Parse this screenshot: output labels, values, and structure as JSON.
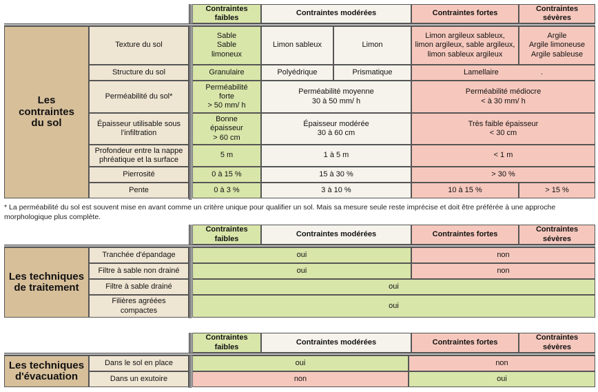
{
  "headers": {
    "faibles": "Contraintes\nfaibles",
    "moderees": "Contraintes modérées",
    "fortes": "Contraintes fortes",
    "severes": "Contraintes sévères"
  },
  "sol": {
    "title": "Les\ncontraintes\ndu sol",
    "rows": [
      {
        "label": "Texture du sol",
        "faibles": "Sable\nSable\nlimoneux",
        "moderees_a": "Limon sableux",
        "moderees_b": "Limon",
        "fortes": "Limon argileux sableux,\nlimon argileux, sable argileux,\nlimon sableux argileux",
        "severes": "Argile\nArgile limoneuse\nArgile sableuse"
      },
      {
        "label": "Structure du sol",
        "faibles": "Granulaire",
        "moderees_a": "Polyédrique",
        "moderees_b": "Prismatique",
        "fortes": "Lamellaire                    ."
      },
      {
        "label": "Perméabilité du sol*",
        "faibles": "Perméabilité\nforte\n> 50 mm/ h",
        "moderees": "Perméabilité moyenne\n30 à 50 mm/ h",
        "fortes": "Perméabilité médiocre\n< à 30 mm/ h"
      },
      {
        "label": "Épaisseur utilisable sous\nl'infiltration",
        "faibles": "Bonne\népaisseur\n> 60 cm",
        "moderees": "Épaisseur modérée\n30 à 60 cm",
        "fortes": "Très faible épaisseur\n< 30 cm"
      },
      {
        "label": "Profondeur entre la nappe\nphréatique et la surface",
        "faibles": "5 m",
        "moderees": "1 à 5 m",
        "fortes": "< 1 m"
      },
      {
        "label": "Pierrosité",
        "faibles": "0 à 15 %",
        "moderees": "15 à 30 %",
        "fortes": "> 30 %"
      },
      {
        "label": "Pente",
        "faibles": "0 à 3 %",
        "moderees": "3 à 10 %",
        "fortes": "10 à 15 %",
        "severes": "> 15 %"
      }
    ]
  },
  "footnote": "* La perméabilité du sol est souvent mise en avant comme un critère unique pour qualifier un sol. Mais sa mesure seule reste imprécise et doit être préférée à une approche morphologique plus complète.",
  "traitement": {
    "title": "Les techniques\nde traitement",
    "rows": [
      {
        "label": "Tranchée d'épandage",
        "a": "oui",
        "b": "non"
      },
      {
        "label": "Filtre à sable non drainé",
        "a": "oui",
        "b": "non"
      },
      {
        "label": "Filtre à sable drainé",
        "a": "oui"
      },
      {
        "label": "Filières agréées\ncompactes",
        "a": "oui"
      }
    ]
  },
  "evacuation": {
    "title": "Les techniques\nd'évacuation",
    "rows": [
      {
        "label": "Dans le sol en place",
        "a": "oui",
        "b": "non"
      },
      {
        "label": "Dans un exutoire",
        "a": "non",
        "b": "oui"
      }
    ]
  },
  "colors": {
    "tan": "#d7bf9a",
    "beige": "#efe5d3",
    "green": "#d8e6aa",
    "neutral": "#f6f3ec",
    "pink": "#f6c8bd"
  }
}
